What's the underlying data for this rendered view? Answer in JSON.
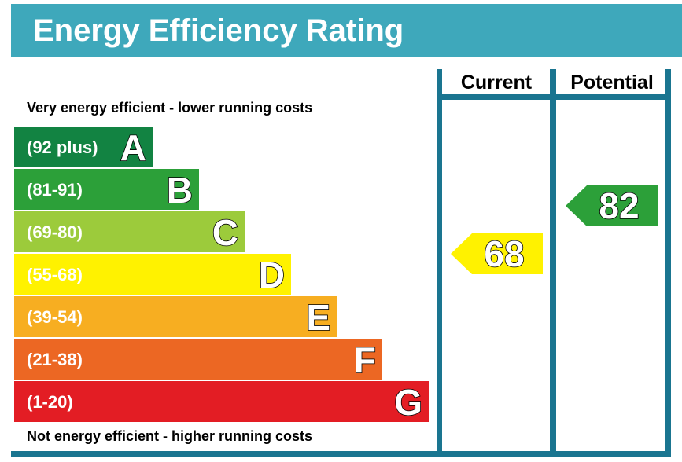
{
  "title": "Energy Efficiency Rating",
  "top_caption": "Very energy efficient - lower running costs",
  "bottom_caption": "Not energy efficient - higher running costs",
  "columns": {
    "current": "Current",
    "potential": "Potential"
  },
  "colors": {
    "header": "#3ea8bb",
    "frame": "#1a7590"
  },
  "chart_data": {
    "type": "bar",
    "categories": [
      "A",
      "B",
      "C",
      "D",
      "E",
      "F",
      "G"
    ],
    "ranges": [
      "(92 plus)",
      "(81-91)",
      "(69-80)",
      "(55-68)",
      "(39-54)",
      "(21-38)",
      "(1-20)"
    ],
    "bands": [
      {
        "letter": "A",
        "range": "(92 plus)",
        "min": 92,
        "max": 100,
        "color": "#128342"
      },
      {
        "letter": "B",
        "range": "(81-91)",
        "min": 81,
        "max": 91,
        "color": "#2ca039"
      },
      {
        "letter": "C",
        "range": "(69-80)",
        "min": 69,
        "max": 80,
        "color": "#9ccb3b"
      },
      {
        "letter": "D",
        "range": "(55-68)",
        "min": 55,
        "max": 68,
        "color": "#fff200"
      },
      {
        "letter": "E",
        "range": "(39-54)",
        "min": 39,
        "max": 54,
        "color": "#f7ae21"
      },
      {
        "letter": "F",
        "range": "(21-38)",
        "min": 21,
        "max": 38,
        "color": "#ec6723"
      },
      {
        "letter": "G",
        "range": "(1-20)",
        "min": 1,
        "max": 20,
        "color": "#e31d24"
      }
    ],
    "current": {
      "value": 68,
      "band": "D",
      "color": "#fff200"
    },
    "potential": {
      "value": 82,
      "band": "B",
      "color": "#2ca039"
    }
  }
}
